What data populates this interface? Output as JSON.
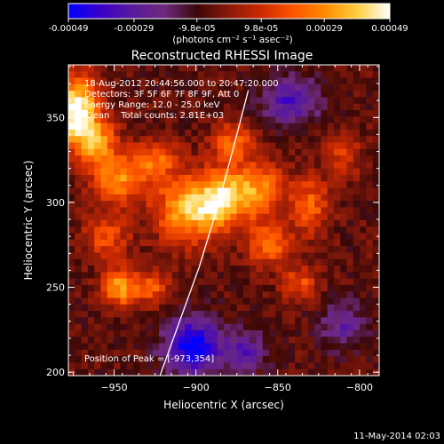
{
  "colorbar": {
    "tick_labels": [
      "-0.00049",
      "-0.00029",
      "-9.8e-05",
      "9.8e-05",
      "0.00029",
      "0.00049"
    ],
    "tick_values": [
      -0.00049,
      -0.00029,
      -9.8e-05,
      9.8e-05,
      0.00029,
      0.00049
    ],
    "range": [
      -0.00049,
      0.00049
    ],
    "unit_label": "(photons cm⁻² s⁻¹ asec⁻²)",
    "colors": [
      "#0000ff",
      "#3a00c8",
      "#5a1a9a",
      "#6f2a7e",
      "#3a0808",
      "#8a1a0a",
      "#cc2a00",
      "#ff5500",
      "#ff8c00",
      "#ffd040",
      "#ffffff"
    ]
  },
  "chart_data": {
    "type": "heatmap",
    "title": "Reconstructed RHESSI Image",
    "xlabel": "Heliocentric X (arcsec)",
    "ylabel": "Heliocentric Y (arcsec)",
    "xlim": [
      -978,
      -788
    ],
    "ylim": [
      198,
      381
    ],
    "x_ticks": [
      -950,
      -900,
      -850,
      -800
    ],
    "y_ticks": [
      200,
      250,
      300,
      350
    ],
    "x_tick_labels": [
      "−950",
      "−900",
      "−850",
      "−800"
    ],
    "y_tick_labels": [
      "200",
      "250",
      "300",
      "350"
    ],
    "info_lines": [
      "18-Aug-2012 20:44:56.000 to 20:47:20.000",
      "Detectors: 3F 5F 6F 7F 8F 9F, Att 0",
      "Energy Range: 12.0 - 25.0 keV",
      "Clean    Total counts: 2.81E+03"
    ],
    "peak_label": "Position of Peak = [-973,354]",
    "peak": [
      -973,
      354
    ],
    "limb_curve": [
      [
        -922,
        198
      ],
      [
        -910,
        230
      ],
      [
        -898,
        262
      ],
      [
        -886,
        300
      ],
      [
        -875,
        340
      ],
      [
        -868,
        366
      ]
    ],
    "emission_sources": [
      {
        "x": -973,
        "y": 354,
        "amp": 1.0,
        "sx": 9,
        "sy": 14
      },
      {
        "x": -960,
        "y": 335,
        "amp": 0.55,
        "sx": 9,
        "sy": 10
      },
      {
        "x": -947,
        "y": 313,
        "amp": 0.55,
        "sx": 12,
        "sy": 10
      },
      {
        "x": -925,
        "y": 325,
        "amp": 0.45,
        "sx": 10,
        "sy": 8
      },
      {
        "x": -955,
        "y": 280,
        "amp": 0.4,
        "sx": 10,
        "sy": 9
      },
      {
        "x": -905,
        "y": 296,
        "amp": 0.7,
        "sx": 14,
        "sy": 14
      },
      {
        "x": -885,
        "y": 302,
        "amp": 0.6,
        "sx": 10,
        "sy": 12
      },
      {
        "x": -863,
        "y": 308,
        "amp": 0.6,
        "sx": 12,
        "sy": 12
      },
      {
        "x": -878,
        "y": 336,
        "amp": 0.45,
        "sx": 9,
        "sy": 8
      },
      {
        "x": -855,
        "y": 275,
        "amp": 0.5,
        "sx": 10,
        "sy": 9
      },
      {
        "x": -830,
        "y": 298,
        "amp": 0.45,
        "sx": 8,
        "sy": 12
      },
      {
        "x": -810,
        "y": 328,
        "amp": 0.3,
        "sx": 8,
        "sy": 10
      },
      {
        "x": -946,
        "y": 250,
        "amp": 0.65,
        "sx": 8,
        "sy": 8
      },
      {
        "x": -926,
        "y": 250,
        "amp": 0.4,
        "sx": 7,
        "sy": 7
      },
      {
        "x": -836,
        "y": 252,
        "amp": 0.4,
        "sx": 8,
        "sy": 7
      },
      {
        "x": -902,
        "y": 215,
        "amp": -0.75,
        "sx": 12,
        "sy": 12
      },
      {
        "x": -870,
        "y": 212,
        "amp": -0.4,
        "sx": 10,
        "sy": 8
      },
      {
        "x": -842,
        "y": 360,
        "amp": -0.5,
        "sx": 12,
        "sy": 10
      },
      {
        "x": -810,
        "y": 228,
        "amp": -0.35,
        "sx": 10,
        "sy": 10
      }
    ]
  },
  "footer": {
    "timestamp": "11-May-2014 02:03"
  }
}
